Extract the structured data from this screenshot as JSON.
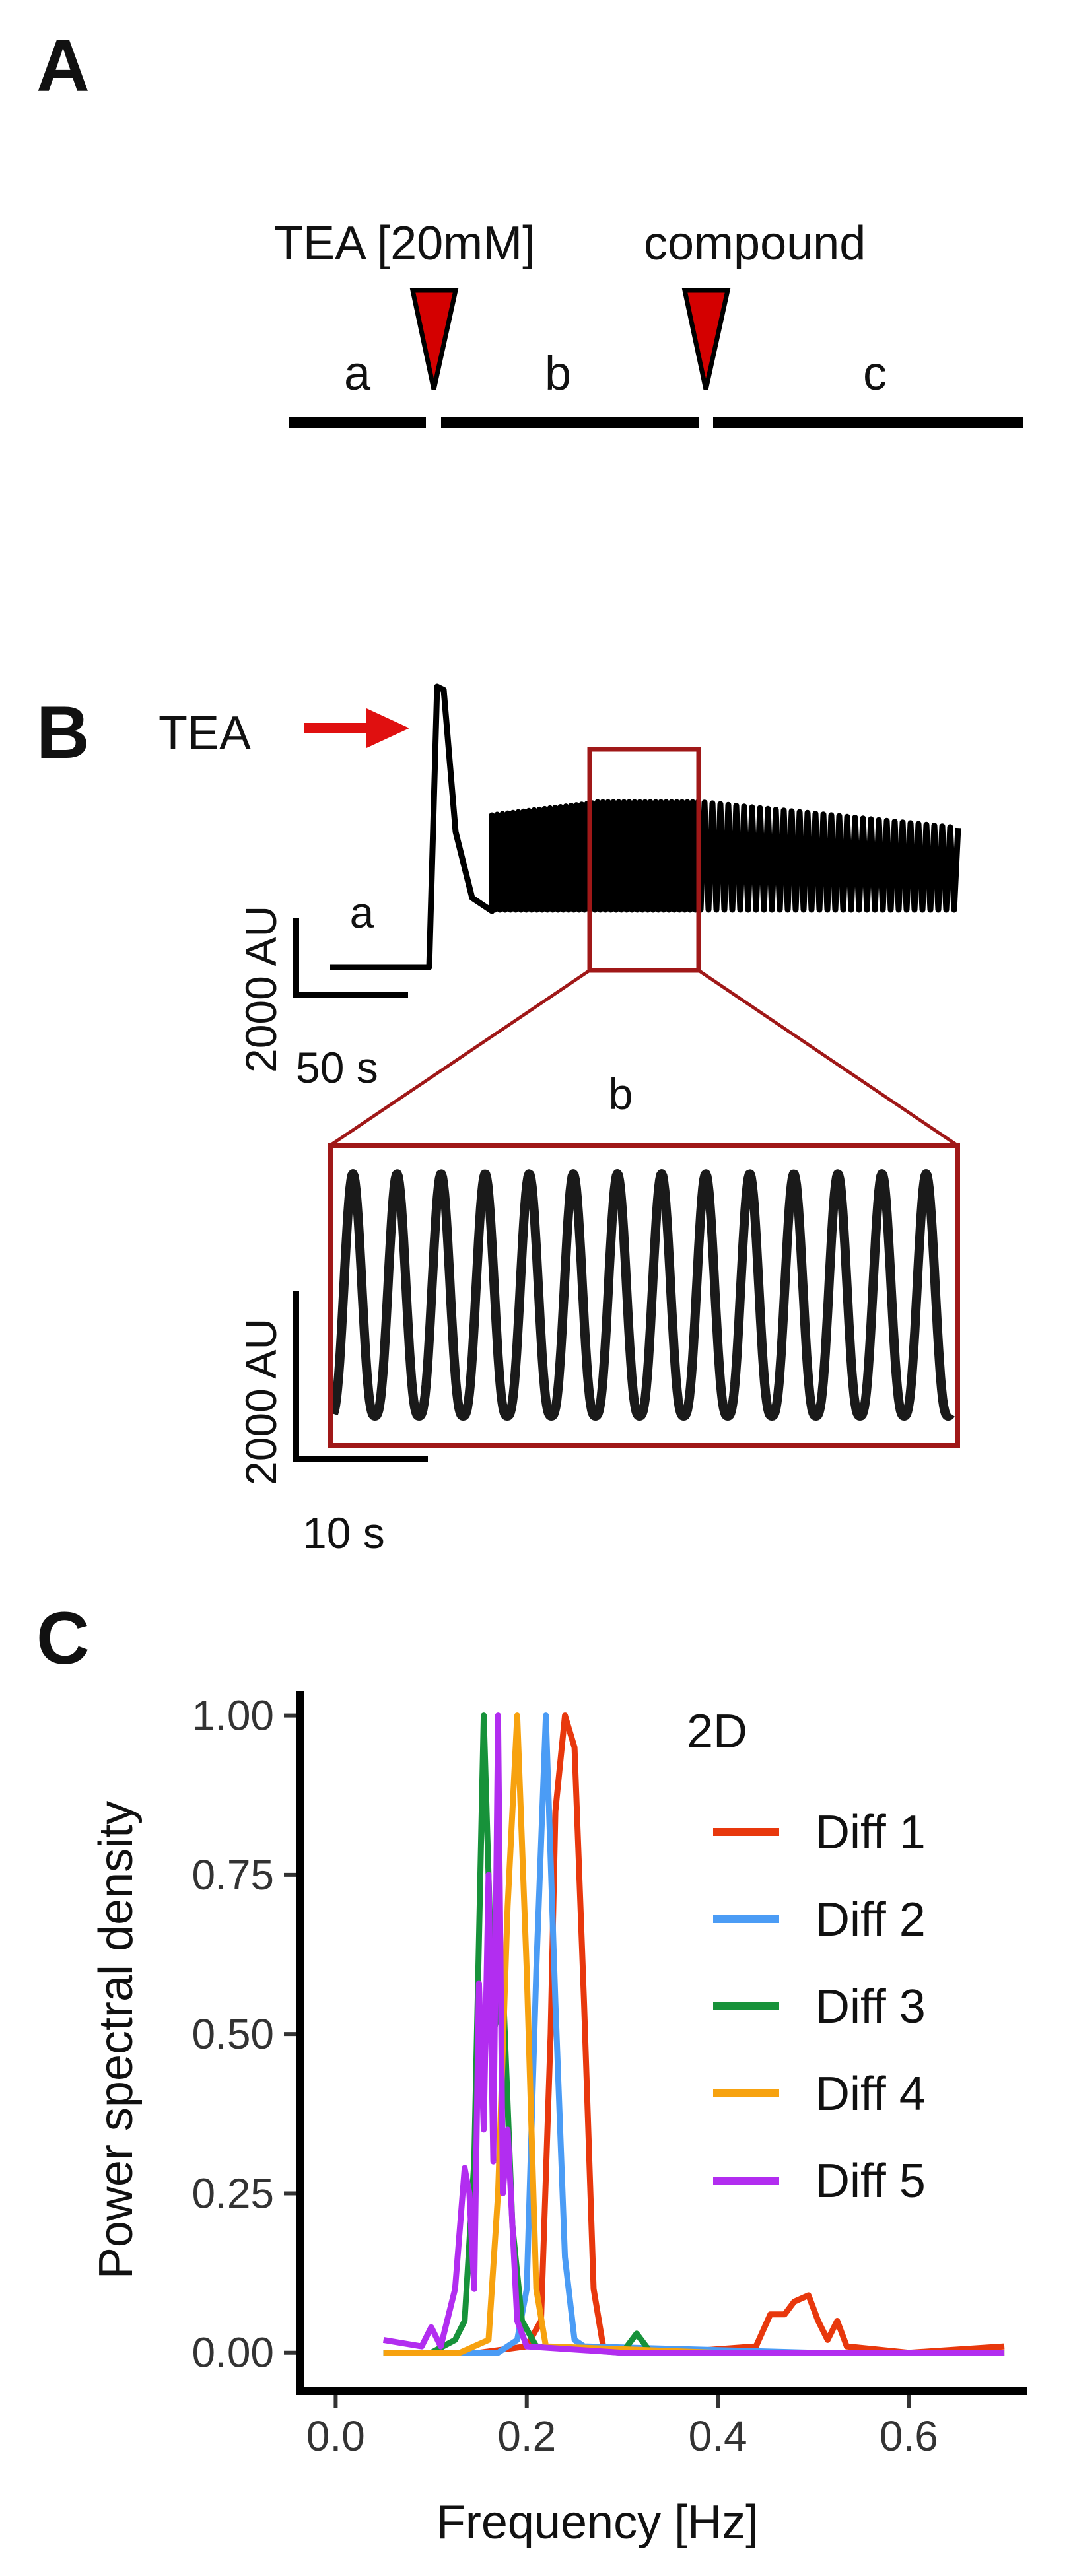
{
  "panels": {
    "a": {
      "letter": "A"
    },
    "b": {
      "letter": "B"
    },
    "c": {
      "letter": "C"
    }
  },
  "protocol": {
    "tea_label": "TEA [20mM]",
    "compound_label": "compound",
    "segments": [
      "a",
      "b",
      "c"
    ],
    "marker_color": "#d40000"
  },
  "trace": {
    "stimulus_label": "TEA",
    "arrow_color": "#e01010",
    "inset_color": "#a01818",
    "segment_a_label": "a",
    "zoom_label": "b",
    "overview_scale": {
      "y": "2000 AU",
      "x": "50 s"
    },
    "zoom_scale": {
      "y": "2000 AU",
      "x": "10 s"
    },
    "zoom_cycles": 14
  },
  "chart_data": {
    "type": "line",
    "title": "",
    "xlabel": "Frequency [Hz]",
    "ylabel": "Power spectral density",
    "xlim": [
      -0.03,
      0.72
    ],
    "ylim": [
      -0.05,
      1.04
    ],
    "x_ticks": [
      0.0,
      0.2,
      0.4,
      0.6
    ],
    "x_tick_labels": [
      "0.0",
      "0.2",
      "0.4",
      "0.6"
    ],
    "y_ticks": [
      0.0,
      0.25,
      0.5,
      0.75,
      1.0
    ],
    "y_tick_labels": [
      "0.00",
      "0.25",
      "0.50",
      "0.75",
      "1.00"
    ],
    "grid": false,
    "legend_title": "2D",
    "legend_position": "top-right",
    "series": [
      {
        "name": "Diff 1",
        "color": "#e8380d",
        "points": [
          [
            0.05,
            0.0
          ],
          [
            0.15,
            0.0
          ],
          [
            0.2,
            0.01
          ],
          [
            0.215,
            0.05
          ],
          [
            0.225,
            0.5
          ],
          [
            0.23,
            0.85
          ],
          [
            0.24,
            1.0
          ],
          [
            0.25,
            0.95
          ],
          [
            0.26,
            0.55
          ],
          [
            0.27,
            0.1
          ],
          [
            0.28,
            0.01
          ],
          [
            0.35,
            0.0
          ],
          [
            0.44,
            0.01
          ],
          [
            0.455,
            0.06
          ],
          [
            0.47,
            0.06
          ],
          [
            0.48,
            0.08
          ],
          [
            0.495,
            0.09
          ],
          [
            0.505,
            0.05
          ],
          [
            0.515,
            0.02
          ],
          [
            0.525,
            0.05
          ],
          [
            0.535,
            0.01
          ],
          [
            0.6,
            0.0
          ],
          [
            0.7,
            0.01
          ]
        ]
      },
      {
        "name": "Diff 2",
        "color": "#4b9cf5",
        "points": [
          [
            0.05,
            0.0
          ],
          [
            0.17,
            0.0
          ],
          [
            0.19,
            0.02
          ],
          [
            0.2,
            0.1
          ],
          [
            0.21,
            0.6
          ],
          [
            0.22,
            1.0
          ],
          [
            0.23,
            0.55
          ],
          [
            0.24,
            0.15
          ],
          [
            0.25,
            0.02
          ],
          [
            0.26,
            0.01
          ],
          [
            0.5,
            0.0
          ],
          [
            0.7,
            0.0
          ]
        ]
      },
      {
        "name": "Diff 3",
        "color": "#17923a",
        "points": [
          [
            0.05,
            0.0
          ],
          [
            0.1,
            0.0
          ],
          [
            0.125,
            0.02
          ],
          [
            0.135,
            0.05
          ],
          [
            0.145,
            0.3
          ],
          [
            0.155,
            1.0
          ],
          [
            0.165,
            0.5
          ],
          [
            0.175,
            0.58
          ],
          [
            0.185,
            0.2
          ],
          [
            0.195,
            0.05
          ],
          [
            0.21,
            0.01
          ],
          [
            0.3,
            0.0
          ],
          [
            0.315,
            0.03
          ],
          [
            0.33,
            0.0
          ],
          [
            0.5,
            0.0
          ],
          [
            0.7,
            0.0
          ]
        ]
      },
      {
        "name": "Diff 4",
        "color": "#f7a20f",
        "points": [
          [
            0.05,
            0.0
          ],
          [
            0.13,
            0.0
          ],
          [
            0.16,
            0.02
          ],
          [
            0.17,
            0.25
          ],
          [
            0.18,
            0.7
          ],
          [
            0.19,
            1.0
          ],
          [
            0.2,
            0.6
          ],
          [
            0.21,
            0.1
          ],
          [
            0.22,
            0.01
          ],
          [
            0.4,
            0.0
          ],
          [
            0.7,
            0.0
          ]
        ]
      },
      {
        "name": "Diff 5",
        "color": "#b22df0",
        "points": [
          [
            0.05,
            0.02
          ],
          [
            0.09,
            0.01
          ],
          [
            0.1,
            0.04
          ],
          [
            0.11,
            0.01
          ],
          [
            0.125,
            0.1
          ],
          [
            0.135,
            0.29
          ],
          [
            0.14,
            0.25
          ],
          [
            0.145,
            0.1
          ],
          [
            0.15,
            0.58
          ],
          [
            0.155,
            0.35
          ],
          [
            0.16,
            0.75
          ],
          [
            0.165,
            0.3
          ],
          [
            0.17,
            1.0
          ],
          [
            0.175,
            0.25
          ],
          [
            0.18,
            0.35
          ],
          [
            0.19,
            0.05
          ],
          [
            0.2,
            0.01
          ],
          [
            0.3,
            0.0
          ],
          [
            0.7,
            0.0
          ]
        ]
      }
    ]
  }
}
